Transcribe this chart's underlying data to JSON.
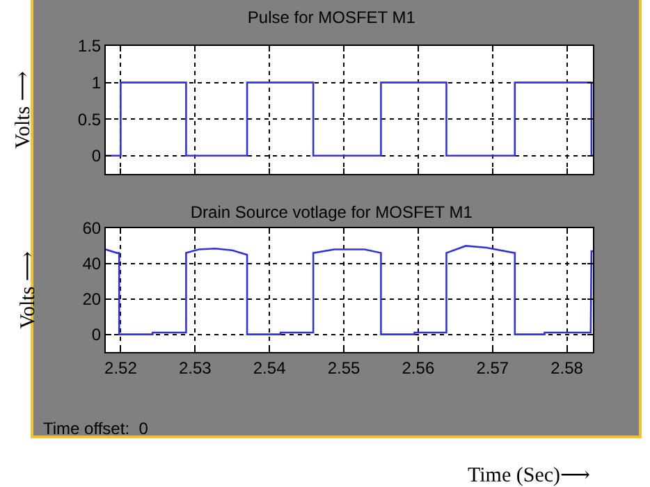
{
  "chart_data": [
    {
      "type": "line",
      "title": "Pulse for MOSFET M1",
      "ylabel": "Volts ⟶",
      "xlim": [
        2.518,
        2.5835
      ],
      "xticks": [
        2.52,
        2.53,
        2.54,
        2.55,
        2.56,
        2.57,
        2.58
      ],
      "ylim": [
        -0.25,
        1.5
      ],
      "yticks": [
        0,
        0.5,
        1,
        1.5
      ],
      "grid": true,
      "tick_labels": "y",
      "line_style": "solid",
      "marker": "none",
      "series": [
        {
          "color": "#3333dd",
          "x": [
            2.518,
            2.52,
            2.52,
            2.5288,
            2.5288,
            2.537,
            2.537,
            2.5459,
            2.5459,
            2.555,
            2.555,
            2.5638,
            2.5638,
            2.573,
            2.573,
            2.5833,
            2.5833,
            2.5835
          ],
          "values": [
            0,
            0,
            1,
            1,
            0,
            0,
            1,
            1,
            0,
            0,
            1,
            1,
            0,
            0,
            1,
            1,
            0,
            0
          ]
        }
      ]
    },
    {
      "type": "line",
      "title": "Drain Source votlage for MOSFET M1",
      "ylabel": "Volts ⟶",
      "xlabel": "Time (Sec)⟶",
      "xlim": [
        2.518,
        2.5835
      ],
      "xticks": [
        2.52,
        2.53,
        2.54,
        2.55,
        2.56,
        2.57,
        2.58
      ],
      "ylim": [
        -10,
        60
      ],
      "yticks": [
        0,
        20,
        40,
        60
      ],
      "grid": true,
      "line_style": "solid",
      "marker": "none",
      "annotations": [
        "Time offset:  0"
      ],
      "series": [
        {
          "color": "#3333dd",
          "x": [
            2.518,
            2.5195,
            2.5198,
            2.5198,
            2.5243,
            2.5243,
            2.5288,
            2.5288,
            2.5305,
            2.5327,
            2.535,
            2.537,
            2.537,
            2.5415,
            2.5415,
            2.5459,
            2.5459,
            2.5487,
            2.5528,
            2.555,
            2.555,
            2.5595,
            2.5595,
            2.5638,
            2.5638,
            2.5664,
            2.5692,
            2.573,
            2.573,
            2.577,
            2.577,
            2.5832,
            2.5833,
            2.5835
          ],
          "values": [
            48,
            46,
            46,
            0,
            0,
            1,
            1,
            46,
            48,
            48.5,
            47.5,
            45,
            0,
            0,
            1,
            1,
            46,
            48,
            48,
            46,
            0,
            0,
            1,
            1,
            46,
            50,
            49,
            46,
            0,
            0,
            1,
            1,
            47,
            47
          ]
        }
      ]
    }
  ]
}
